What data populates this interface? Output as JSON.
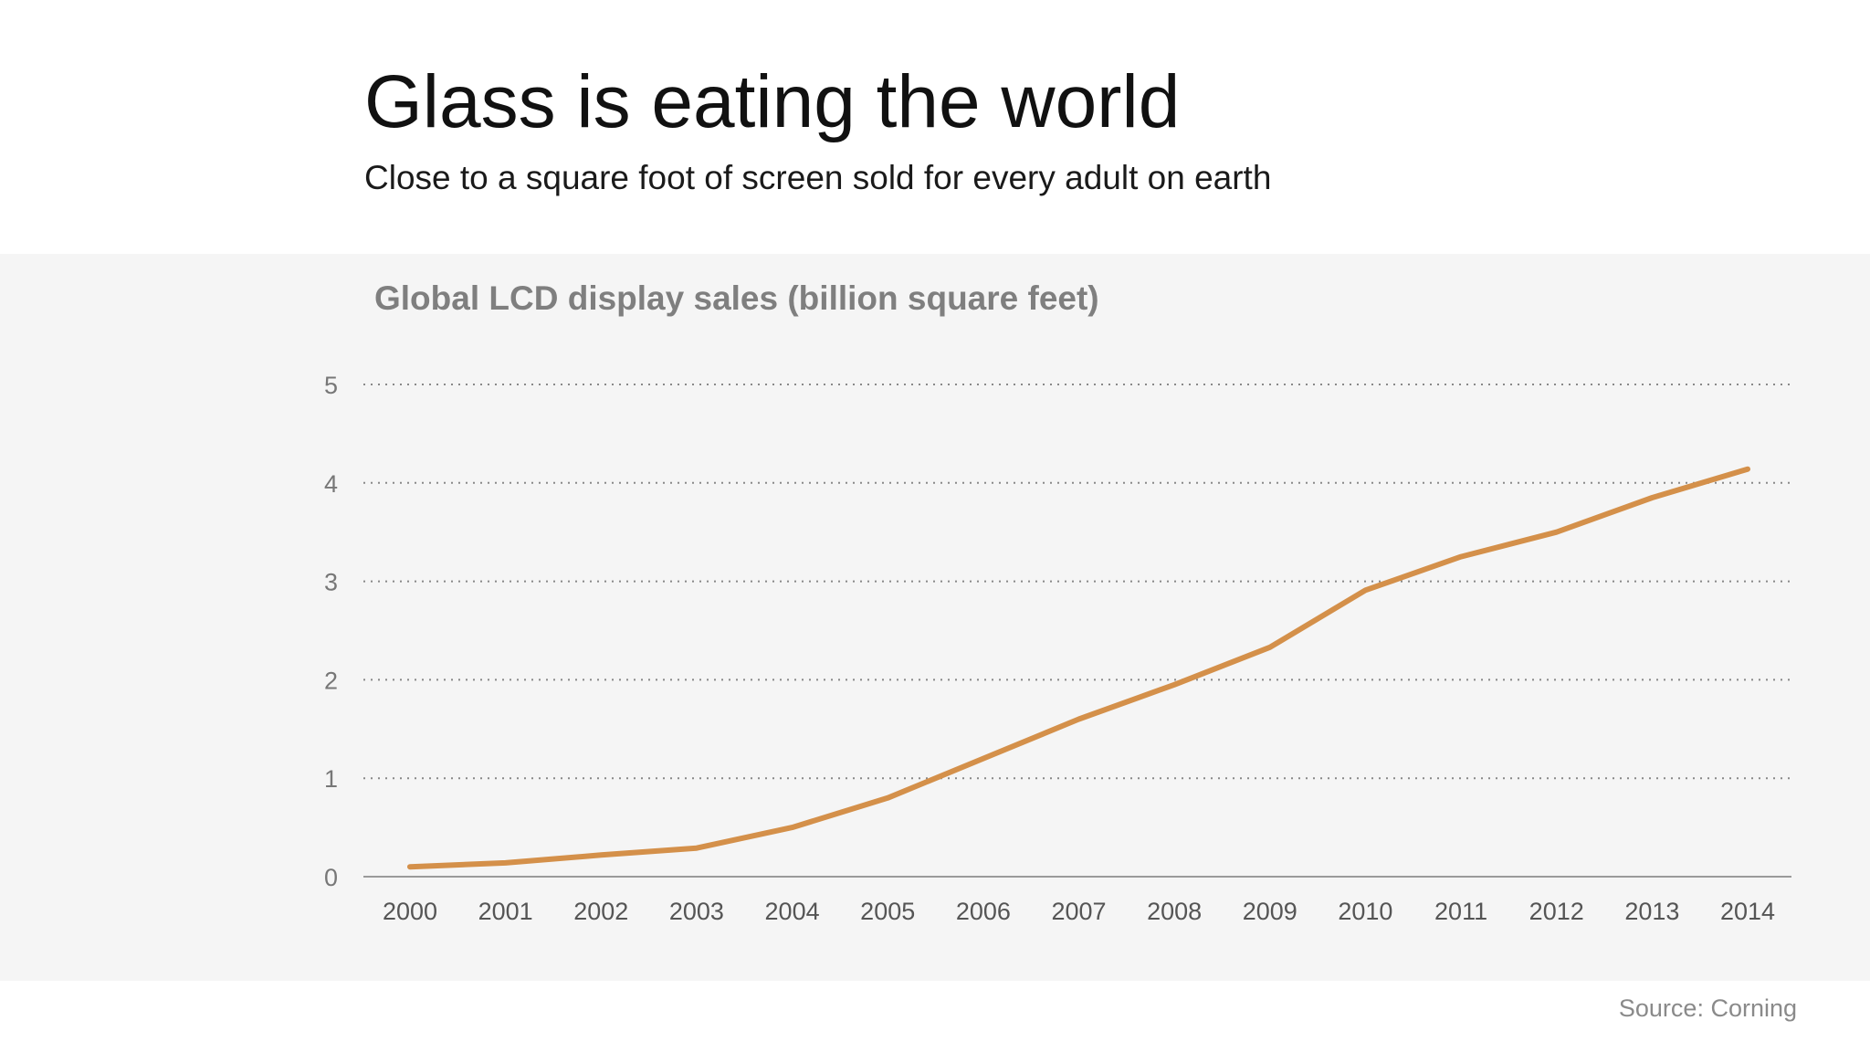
{
  "header": {
    "title": "Glass is eating the world",
    "subtitle": "Close to a square foot of screen sold for every adult on earth"
  },
  "footer": {
    "source": "Source: Corning"
  },
  "chart_data": {
    "type": "line",
    "title": "Global LCD display sales (billion square feet)",
    "xlabel": "",
    "ylabel": "",
    "categories": [
      "2000",
      "2001",
      "2002",
      "2003",
      "2004",
      "2005",
      "2006",
      "2007",
      "2008",
      "2009",
      "2010",
      "2011",
      "2012",
      "2013",
      "2014"
    ],
    "series": [
      {
        "values": [
          0.1,
          0.14,
          0.22,
          0.29,
          0.5,
          0.8,
          1.2,
          1.6,
          1.95,
          2.33,
          2.91,
          3.25,
          3.5,
          3.85,
          4.14
        ],
        "color": "#d4904a"
      }
    ],
    "ylim": [
      0,
      5
    ],
    "yticks": [
      "0",
      "1",
      "2",
      "3",
      "4",
      "5"
    ],
    "grid": true,
    "grid_style": "dotted",
    "legend": "none"
  },
  "colors": {
    "panel_background": "#f5f5f5",
    "line": "#d4904a",
    "gridline": "#888888",
    "axis_text": "#555555"
  }
}
